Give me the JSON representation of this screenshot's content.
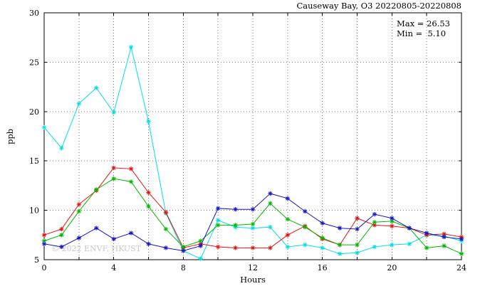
{
  "watermark": "© 2022 ENVF, HKUST",
  "annotation": {
    "max_label": "Max = 26.53",
    "min_label": "Min =  5.10"
  },
  "chart_data": {
    "type": "line",
    "title": "Causeway Bay, O3 20220805-20220808",
    "xlabel": "Hours",
    "ylabel": "ppb",
    "xlim": [
      0,
      24
    ],
    "ylim": [
      5,
      30
    ],
    "xticks": [
      0,
      4,
      8,
      12,
      16,
      20,
      24
    ],
    "yticks": [
      5,
      10,
      15,
      20,
      25,
      30
    ],
    "xgrid_step": 2,
    "grid": true,
    "legend": "none",
    "max_value": 26.53,
    "min_value": 5.1,
    "x": [
      0,
      1,
      2,
      3,
      4,
      5,
      6,
      7,
      8,
      9,
      10,
      11,
      12,
      13,
      14,
      15,
      16,
      17,
      18,
      19,
      20,
      21,
      22,
      23,
      24
    ],
    "series": [
      {
        "name": "cyan",
        "color": "#00dfe6",
        "values": [
          18.4,
          16.3,
          20.8,
          22.4,
          19.9,
          26.53,
          19.0,
          9.7,
          5.9,
          5.1,
          9.0,
          8.3,
          8.2,
          8.3,
          6.3,
          6.5,
          6.2,
          5.6,
          5.7,
          6.3,
          6.5,
          6.6,
          7.5,
          7.4,
          6.9
        ]
      },
      {
        "name": "red",
        "color": "#e81212",
        "values": [
          7.5,
          8.1,
          10.6,
          12.0,
          14.3,
          14.2,
          11.8,
          9.8,
          6.2,
          6.6,
          6.3,
          6.2,
          6.2,
          6.2,
          7.5,
          8.4,
          7.1,
          6.5,
          9.2,
          8.5,
          8.4,
          8.2,
          7.5,
          7.6,
          7.3
        ]
      },
      {
        "name": "green",
        "color": "#00b800",
        "values": [
          6.9,
          7.5,
          9.9,
          12.1,
          13.2,
          12.9,
          10.4,
          8.1,
          6.3,
          6.9,
          8.5,
          8.5,
          8.6,
          10.7,
          9.1,
          8.3,
          7.2,
          6.5,
          6.5,
          8.8,
          8.9,
          8.2,
          6.2,
          6.4,
          5.6
        ]
      },
      {
        "name": "blue",
        "color": "#1515cc",
        "values": [
          6.6,
          6.3,
          7.2,
          8.2,
          7.1,
          7.7,
          6.6,
          6.2,
          5.9,
          6.4,
          10.2,
          10.1,
          10.1,
          11.7,
          11.2,
          9.9,
          8.7,
          8.2,
          8.1,
          9.6,
          9.2,
          8.2,
          7.7,
          7.3,
          7.1
        ]
      }
    ]
  }
}
